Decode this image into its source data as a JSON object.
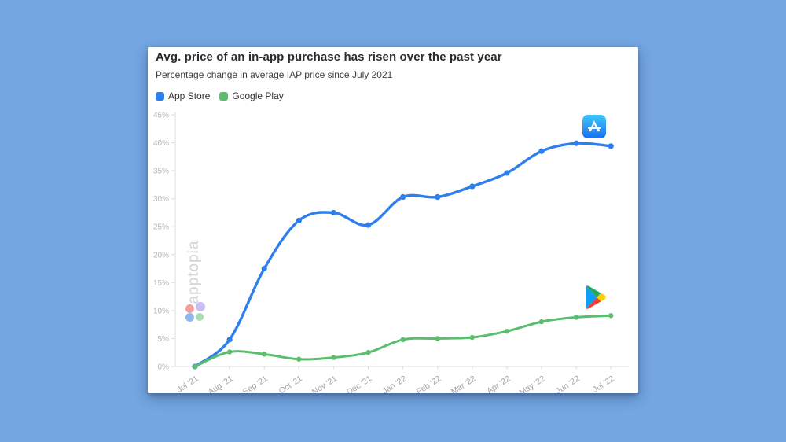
{
  "page": {
    "background_color": "#74a6e2",
    "card_color": "#ffffff"
  },
  "chart_data": {
    "type": "line",
    "title": "Avg. price of an in-app purchase has risen over the past year",
    "subtitle": "Percentage change in average IAP price since July 2021",
    "categories": [
      "Jul '21",
      "Aug '21",
      "Sep '21",
      "Oct '21",
      "Nov '21",
      "Dec '21",
      "Jan '22",
      "Feb '22",
      "Mar '22",
      "Apr '22",
      "May '22",
      "Jun '22",
      "Jul '22"
    ],
    "series": [
      {
        "name": "App Store",
        "color": "#2e7fee",
        "marker": "circle",
        "annotation_icon": "app-store-icon",
        "values": [
          0,
          4.8,
          17.5,
          26.1,
          27.5,
          25.3,
          30.3,
          30.3,
          32.2,
          34.6,
          38.5,
          39.9,
          39.4
        ]
      },
      {
        "name": "Google Play",
        "color": "#5bbe6e",
        "marker": "circle",
        "annotation_icon": "google-play-icon",
        "values": [
          0,
          2.6,
          2.2,
          1.3,
          1.6,
          2.5,
          4.8,
          5.0,
          5.2,
          6.3,
          8.0,
          8.8,
          9.1
        ]
      }
    ],
    "xlabel": "",
    "ylabel": "",
    "ylim": [
      0,
      45
    ],
    "ytick_step": 5,
    "ytick_suffix": "%",
    "grid": false,
    "legend_position": "top-left",
    "axis_color": "#dcdce2",
    "ytick_label_color": "#b5b5bc",
    "xtick_label_color": "#a2a2aa"
  },
  "watermark": {
    "text": "apptopia",
    "text_color": "#d3d3d8",
    "logo_petal_colors": [
      "#f1a09b",
      "#cbbdf4",
      "#8fb9ec",
      "#a9dcb2"
    ]
  },
  "icons": {
    "app_store": {
      "bg_gradient": [
        "#3ec8fb",
        "#1a6df0"
      ],
      "glyph_color": "#ffffff"
    },
    "google_play": {
      "blue": "#0f9df5",
      "green": "#27a85f",
      "yellow": "#ffce00",
      "red": "#ea4335"
    }
  }
}
